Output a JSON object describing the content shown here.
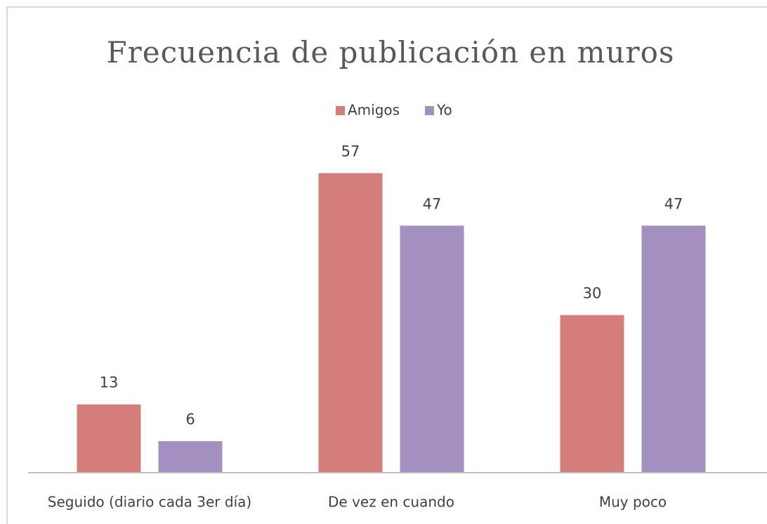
{
  "chart_data": {
    "type": "bar",
    "title": "Frecuencia de publicación en muros",
    "categories": [
      "Seguido (diario cada 3er día)",
      "De vez en cuando",
      "Muy poco"
    ],
    "series": [
      {
        "name": "Amigos",
        "color": "#d47d7b",
        "values": [
          13,
          57,
          30
        ]
      },
      {
        "name": "Yo",
        "color": "#a48fc1",
        "values": [
          6,
          47,
          47
        ]
      }
    ],
    "ylim": [
      0,
      60
    ],
    "legend": "top"
  }
}
